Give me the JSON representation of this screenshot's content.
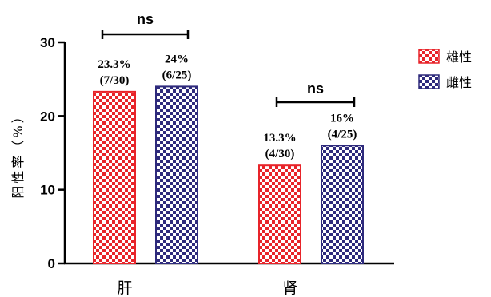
{
  "chart_data": {
    "type": "bar",
    "ylabel": "阳性率（%）",
    "ylim": [
      0,
      30
    ],
    "yticks": [
      0,
      10,
      20,
      30
    ],
    "categories": [
      "肝",
      "肾"
    ],
    "series": [
      {
        "name": "雄性",
        "color": "#e8242a",
        "values": [
          23.3,
          13.3
        ],
        "labels": [
          [
            "23.3%",
            "(7/30)"
          ],
          [
            "13.3%",
            "(4/30)"
          ]
        ]
      },
      {
        "name": "雌性",
        "color": "#2e2a7c",
        "values": [
          24,
          16
        ],
        "labels": [
          [
            "24%",
            "(6/25)"
          ],
          [
            "16%",
            "(4/25)"
          ]
        ]
      }
    ],
    "significance": [
      "ns",
      "ns"
    ],
    "legend_position": "right",
    "grid": false
  }
}
